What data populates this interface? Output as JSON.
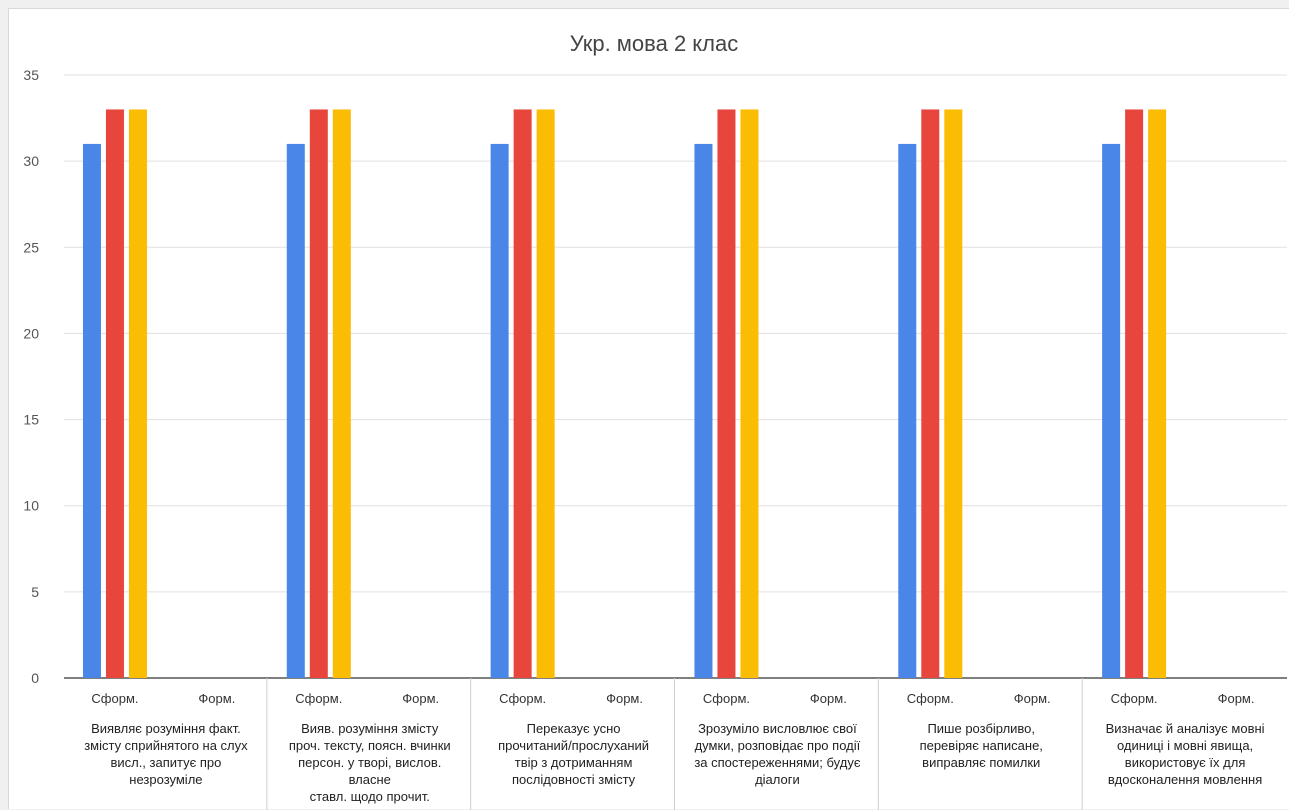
{
  "chart_data": {
    "type": "bar",
    "title": "Укр. мова 2 клас",
    "xlabel": "",
    "ylabel": "",
    "ylim": [
      0,
      35
    ],
    "yticks": [
      "0",
      "5",
      "10",
      "15",
      "20",
      "25",
      "30",
      "35"
    ],
    "grid": true,
    "legend": "none",
    "subcategories": [
      "Сформ.",
      "Форм."
    ],
    "categories": [
      [
        "Виявляє розуміння факт.",
        "змісту сприйнятого на слух",
        "висл., запитує про",
        "незрозуміле"
      ],
      [
        "Вияв. розуміння змісту",
        "проч. тексту, поясн. вчинки",
        "персон. у творі, вислов.",
        "власне",
        "ставл. щодо прочит."
      ],
      [
        "Переказує усно",
        "прочитаний/прослуханий",
        "твір з дотриманням",
        "послідовності змісту"
      ],
      [
        "Зрозуміло висловлює свої",
        "думки, розповідає про події",
        "за спостереженнями; будує",
        "діалоги"
      ],
      [
        "Пише розбірливо,",
        "перевіряє написане,",
        "виправляє помилки"
      ],
      [
        "Визначає й аналізує мовні",
        "одиниці і мовні явища,",
        "використовує їх для",
        "вдосконалення мовлення"
      ]
    ],
    "series": [
      {
        "color": "#4a86e8",
        "values": [
          [
            31,
            0
          ],
          [
            31,
            0
          ],
          [
            31,
            0
          ],
          [
            31,
            0
          ],
          [
            31,
            0
          ],
          [
            31,
            0
          ]
        ]
      },
      {
        "color": "#e8453c",
        "values": [
          [
            33,
            0
          ],
          [
            33,
            0
          ],
          [
            33,
            0
          ],
          [
            33,
            0
          ],
          [
            33,
            0
          ],
          [
            33,
            0
          ]
        ]
      },
      {
        "color": "#fbbc04",
        "values": [
          [
            33,
            0
          ],
          [
            33,
            0
          ],
          [
            33,
            0
          ],
          [
            33,
            0
          ],
          [
            33,
            0
          ],
          [
            33,
            0
          ]
        ]
      }
    ]
  }
}
